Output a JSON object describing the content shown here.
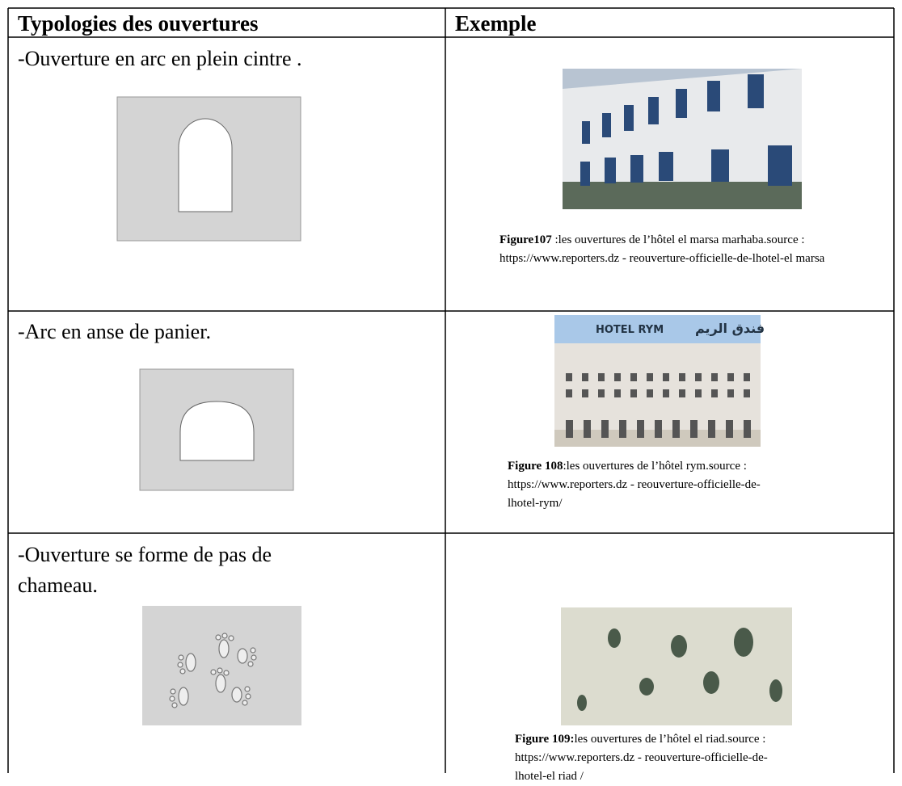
{
  "table": {
    "headers": [
      "Typologies des ouvertures",
      "Exemple"
    ],
    "rows": [
      {
        "typology": "-Ouverture en arc en plein cintre .",
        "figure_label": "Figure107",
        "caption": " :les ouvertures de l’hôtel el marsa marhaba.source : https://www.reporters.dz - reouverture-officielle-de-lhotel-el marsa"
      },
      {
        "typology": "-Arc en anse de panier.",
        "sign_text": [
          "HOTEL RYM",
          "فندق الريم"
        ],
        "figure_label": "Figure 108",
        "caption": ":les ouvertures de l’hôtel rym.source :  https://www.reporters.dz - reouverture-officielle-de-lhotel-rym/"
      },
      {
        "typology": "-Ouverture se forme de pas de chameau.",
        "figure_label": "Figure 109:",
        "caption": "les ouvertures de l’hôtel el riad.source :  https://www.reporters.dz - reouverture-officielle-de-lhotel-el riad /"
      }
    ]
  }
}
